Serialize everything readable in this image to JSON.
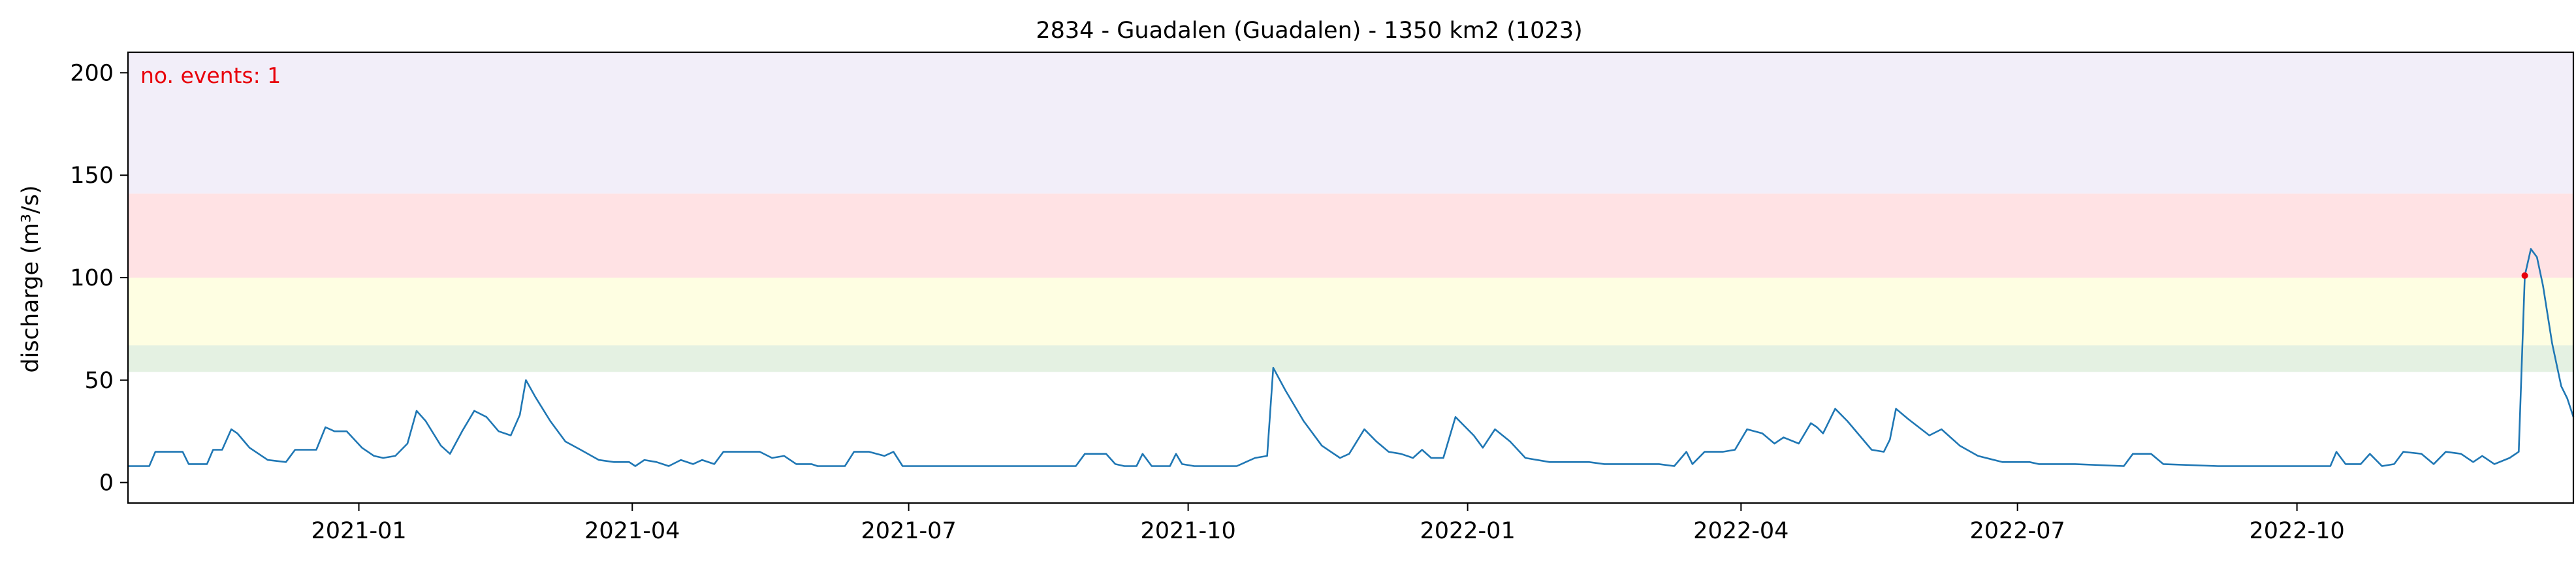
{
  "chart_data": {
    "type": "line",
    "title": "2834 - Guadalen (Guadalen) - 1350 km2 (1023)",
    "xlabel": "",
    "ylabel": "discharge (m³/s)",
    "x_range": [
      "2020-10-17",
      "2022-12-31"
    ],
    "ylim": [
      -10,
      210
    ],
    "yticks": [
      0,
      50,
      100,
      150,
      200
    ],
    "xticks": [
      {
        "date": "2021-01-01",
        "label": "2021-01"
      },
      {
        "date": "2021-04-01",
        "label": "2021-04"
      },
      {
        "date": "2021-07-01",
        "label": "2021-07"
      },
      {
        "date": "2021-10-01",
        "label": "2021-10"
      },
      {
        "date": "2022-01-01",
        "label": "2022-01"
      },
      {
        "date": "2022-04-01",
        "label": "2022-04"
      },
      {
        "date": "2022-07-01",
        "label": "2022-07"
      },
      {
        "date": "2022-10-01",
        "label": "2022-10"
      }
    ],
    "threshold_bands": [
      {
        "name": "band-1-green",
        "from": 54,
        "to": 67,
        "color": "#e4f1e2"
      },
      {
        "name": "band-2-yellow",
        "from": 67,
        "to": 100,
        "color": "#fefee2"
      },
      {
        "name": "band-5-red",
        "from": 100,
        "to": 141,
        "color": "#ffe2e4"
      },
      {
        "name": "band-20-purple",
        "from": 141,
        "to": 210,
        "color": "#f2eef9"
      }
    ],
    "grid": false,
    "line_color": "#1f77b4",
    "event_color": "#e8000b",
    "annotation": "no. events: 1",
    "events": [
      {
        "date": "2022-12-15",
        "value": 101
      }
    ],
    "series": [
      {
        "name": "discharge",
        "points": [
          [
            "2020-10-17",
            8
          ],
          [
            "2020-10-24",
            8
          ],
          [
            "2020-10-26",
            15
          ],
          [
            "2020-11-04",
            15
          ],
          [
            "2020-11-06",
            9
          ],
          [
            "2020-11-12",
            9
          ],
          [
            "2020-11-14",
            16
          ],
          [
            "2020-11-17",
            16
          ],
          [
            "2020-11-20",
            26
          ],
          [
            "2020-11-22",
            24
          ],
          [
            "2020-11-26",
            17
          ],
          [
            "2020-12-02",
            11
          ],
          [
            "2020-12-08",
            10
          ],
          [
            "2020-12-11",
            16
          ],
          [
            "2020-12-18",
            16
          ],
          [
            "2020-12-21",
            27
          ],
          [
            "2020-12-24",
            25
          ],
          [
            "2020-12-28",
            25
          ],
          [
            "2021-01-02",
            17
          ],
          [
            "2021-01-06",
            13
          ],
          [
            "2021-01-09",
            12
          ],
          [
            "2021-01-13",
            13
          ],
          [
            "2021-01-17",
            19
          ],
          [
            "2021-01-20",
            35
          ],
          [
            "2021-01-23",
            30
          ],
          [
            "2021-01-28",
            18
          ],
          [
            "2021-01-31",
            14
          ],
          [
            "2021-02-04",
            25
          ],
          [
            "2021-02-08",
            35
          ],
          [
            "2021-02-12",
            32
          ],
          [
            "2021-02-16",
            25
          ],
          [
            "2021-02-20",
            23
          ],
          [
            "2021-02-23",
            33
          ],
          [
            "2021-02-25",
            50
          ],
          [
            "2021-02-28",
            42
          ],
          [
            "2021-03-05",
            30
          ],
          [
            "2021-03-10",
            20
          ],
          [
            "2021-03-15",
            16
          ],
          [
            "2021-03-21",
            11
          ],
          [
            "2021-03-26",
            10
          ],
          [
            "2021-03-31",
            10
          ],
          [
            "2021-04-02",
            8
          ],
          [
            "2021-04-05",
            11
          ],
          [
            "2021-04-09",
            10
          ],
          [
            "2021-04-13",
            8
          ],
          [
            "2021-04-17",
            11
          ],
          [
            "2021-04-21",
            9
          ],
          [
            "2021-04-24",
            11
          ],
          [
            "2021-04-28",
            9
          ],
          [
            "2021-05-01",
            15
          ],
          [
            "2021-05-06",
            15
          ],
          [
            "2021-05-13",
            15
          ],
          [
            "2021-05-17",
            12
          ],
          [
            "2021-05-21",
            13
          ],
          [
            "2021-05-25",
            9
          ],
          [
            "2021-05-30",
            9
          ],
          [
            "2021-06-01",
            8
          ],
          [
            "2021-06-10",
            8
          ],
          [
            "2021-06-13",
            15
          ],
          [
            "2021-06-18",
            15
          ],
          [
            "2021-06-23",
            13
          ],
          [
            "2021-06-26",
            15
          ],
          [
            "2021-06-29",
            8
          ],
          [
            "2021-07-10",
            8
          ],
          [
            "2021-08-01",
            8
          ],
          [
            "2021-08-25",
            8
          ],
          [
            "2021-08-28",
            14
          ],
          [
            "2021-09-04",
            14
          ],
          [
            "2021-09-07",
            9
          ],
          [
            "2021-09-10",
            8
          ],
          [
            "2021-09-14",
            8
          ],
          [
            "2021-09-16",
            14
          ],
          [
            "2021-09-19",
            8
          ],
          [
            "2021-09-25",
            8
          ],
          [
            "2021-09-27",
            14
          ],
          [
            "2021-09-29",
            9
          ],
          [
            "2021-10-03",
            8
          ],
          [
            "2021-10-17",
            8
          ],
          [
            "2021-10-23",
            12
          ],
          [
            "2021-10-27",
            13
          ],
          [
            "2021-10-29",
            56
          ],
          [
            "2021-11-02",
            45
          ],
          [
            "2021-11-08",
            30
          ],
          [
            "2021-11-14",
            18
          ],
          [
            "2021-11-20",
            12
          ],
          [
            "2021-11-23",
            14
          ],
          [
            "2021-11-28",
            26
          ],
          [
            "2021-12-02",
            20
          ],
          [
            "2021-12-06",
            15
          ],
          [
            "2021-12-10",
            14
          ],
          [
            "2021-12-14",
            12
          ],
          [
            "2021-12-17",
            16
          ],
          [
            "2021-12-20",
            12
          ],
          [
            "2021-12-24",
            12
          ],
          [
            "2021-12-28",
            32
          ],
          [
            "2022-01-03",
            23
          ],
          [
            "2022-01-06",
            17
          ],
          [
            "2022-01-10",
            26
          ],
          [
            "2022-01-15",
            20
          ],
          [
            "2022-01-20",
            12
          ],
          [
            "2022-01-28",
            10
          ],
          [
            "2022-02-10",
            10
          ],
          [
            "2022-02-15",
            9
          ],
          [
            "2022-02-25",
            9
          ],
          [
            "2022-03-05",
            9
          ],
          [
            "2022-03-10",
            8
          ],
          [
            "2022-03-14",
            15
          ],
          [
            "2022-03-16",
            9
          ],
          [
            "2022-03-20",
            15
          ],
          [
            "2022-03-26",
            15
          ],
          [
            "2022-03-30",
            16
          ],
          [
            "2022-04-03",
            26
          ],
          [
            "2022-04-08",
            24
          ],
          [
            "2022-04-12",
            19
          ],
          [
            "2022-04-15",
            22
          ],
          [
            "2022-04-20",
            19
          ],
          [
            "2022-04-24",
            29
          ],
          [
            "2022-04-26",
            27
          ],
          [
            "2022-04-28",
            24
          ],
          [
            "2022-05-02",
            36
          ],
          [
            "2022-05-06",
            30
          ],
          [
            "2022-05-10",
            23
          ],
          [
            "2022-05-14",
            16
          ],
          [
            "2022-05-18",
            15
          ],
          [
            "2022-05-20",
            21
          ],
          [
            "2022-05-22",
            36
          ],
          [
            "2022-05-26",
            31
          ],
          [
            "2022-06-02",
            23
          ],
          [
            "2022-06-06",
            26
          ],
          [
            "2022-06-12",
            18
          ],
          [
            "2022-06-18",
            13
          ],
          [
            "2022-06-26",
            10
          ],
          [
            "2022-07-05",
            10
          ],
          [
            "2022-07-08",
            9
          ],
          [
            "2022-07-20",
            9
          ],
          [
            "2022-08-05",
            8
          ],
          [
            "2022-08-08",
            14
          ],
          [
            "2022-08-14",
            14
          ],
          [
            "2022-08-18",
            9
          ],
          [
            "2022-09-05",
            8
          ],
          [
            "2022-09-30",
            8
          ],
          [
            "2022-10-09",
            8
          ],
          [
            "2022-10-12",
            8
          ],
          [
            "2022-10-14",
            15
          ],
          [
            "2022-10-17",
            9
          ],
          [
            "2022-10-22",
            9
          ],
          [
            "2022-10-25",
            14
          ],
          [
            "2022-10-29",
            8
          ],
          [
            "2022-11-02",
            9
          ],
          [
            "2022-11-05",
            15
          ],
          [
            "2022-11-11",
            14
          ],
          [
            "2022-11-15",
            9
          ],
          [
            "2022-11-19",
            15
          ],
          [
            "2022-11-24",
            14
          ],
          [
            "2022-11-28",
            10
          ],
          [
            "2022-12-01",
            13
          ],
          [
            "2022-12-05",
            9
          ],
          [
            "2022-12-10",
            12
          ],
          [
            "2022-12-13",
            15
          ],
          [
            "2022-12-15",
            101
          ],
          [
            "2022-12-17",
            114
          ],
          [
            "2022-12-19",
            110
          ],
          [
            "2022-12-21",
            96
          ],
          [
            "2022-12-24",
            68
          ],
          [
            "2022-12-27",
            47
          ],
          [
            "2022-12-29",
            41
          ],
          [
            "2022-12-31",
            32
          ]
        ]
      }
    ]
  }
}
